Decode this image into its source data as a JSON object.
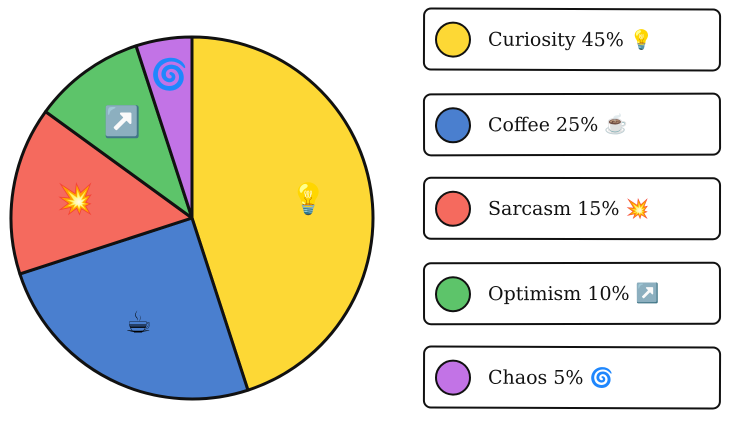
{
  "chart_data": {
    "type": "pie",
    "title": "",
    "slices": [
      {
        "label": "Curiosity",
        "value": 45,
        "emoji": "💡",
        "color": "#FDD835",
        "legend_text": "Curiosity 45% 💡"
      },
      {
        "label": "Coffee",
        "value": 25,
        "emoji": "☕",
        "color": "#4A7FCF",
        "legend_text": "Coffee 25% ☕"
      },
      {
        "label": "Sarcasm",
        "value": 15,
        "emoji": "💥",
        "color": "#F56A5E",
        "legend_text": "Sarcasm 15% 💥"
      },
      {
        "label": "Optimism",
        "value": 10,
        "emoji": "↗️",
        "color": "#5DC46A",
        "legend_text": "Optimism 10% ↗️"
      },
      {
        "label": "Chaos",
        "value": 5,
        "emoji": "🌀",
        "color": "#C273E6",
        "legend_text": "Chaos 5% 🌀"
      }
    ],
    "start_angle": "12 o'clock",
    "direction": "clockwise",
    "legend_position": "right"
  }
}
